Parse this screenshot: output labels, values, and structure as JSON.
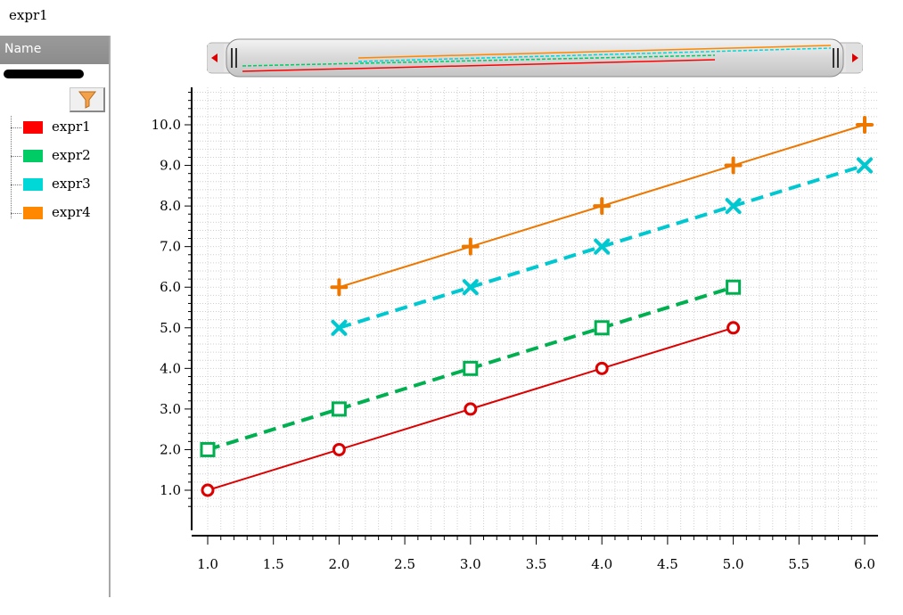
{
  "window": {
    "title": "expr1"
  },
  "sidebar": {
    "header": "Name",
    "filter_icon": "funnel-icon",
    "legend": [
      {
        "label": "expr1",
        "color": "#ff0000"
      },
      {
        "label": "expr2",
        "color": "#00cc66"
      },
      {
        "label": "expr3",
        "color": "#00d8d8"
      },
      {
        "label": "expr4",
        "color": "#ff8800"
      }
    ]
  },
  "scrollbar": {
    "left_arrow_icon": "left-arrow-icon",
    "right_arrow_icon": "right-arrow-icon",
    "grip_icon": "grip-icon"
  },
  "chart_data": {
    "type": "line",
    "title": "",
    "xlabel": "",
    "ylabel": "",
    "xlim": [
      1.0,
      6.0
    ],
    "ylim": [
      0.0,
      11.0
    ],
    "grid": true,
    "x_ticks": [
      "1.0",
      "1.5",
      "2.0",
      "2.5",
      "3.0",
      "3.5",
      "4.0",
      "4.5",
      "5.0",
      "5.5",
      "6.0"
    ],
    "y_ticks": [
      "1.0",
      "2.0",
      "3.0",
      "4.0",
      "5.0",
      "6.0",
      "7.0",
      "8.0",
      "9.0",
      "10.0"
    ],
    "series": [
      {
        "name": "expr1",
        "color": "#dd0000",
        "dashed": false,
        "marker": "circle",
        "points": [
          [
            1,
            1
          ],
          [
            2,
            2
          ],
          [
            3,
            3
          ],
          [
            4,
            4
          ],
          [
            5,
            5
          ]
        ]
      },
      {
        "name": "expr2",
        "color": "#00b050",
        "dashed": true,
        "marker": "square",
        "points": [
          [
            1,
            2
          ],
          [
            2,
            3
          ],
          [
            3,
            4
          ],
          [
            4,
            5
          ],
          [
            5,
            6
          ]
        ]
      },
      {
        "name": "expr3",
        "color": "#00c8d0",
        "dashed": true,
        "marker": "x",
        "points": [
          [
            2,
            5
          ],
          [
            3,
            6
          ],
          [
            4,
            7
          ],
          [
            5,
            8
          ],
          [
            6,
            9
          ]
        ]
      },
      {
        "name": "expr4",
        "color": "#ee7700",
        "dashed": false,
        "marker": "plus",
        "points": [
          [
            2,
            6
          ],
          [
            3,
            7
          ],
          [
            4,
            8
          ],
          [
            5,
            9
          ],
          [
            6,
            10
          ]
        ]
      }
    ]
  }
}
